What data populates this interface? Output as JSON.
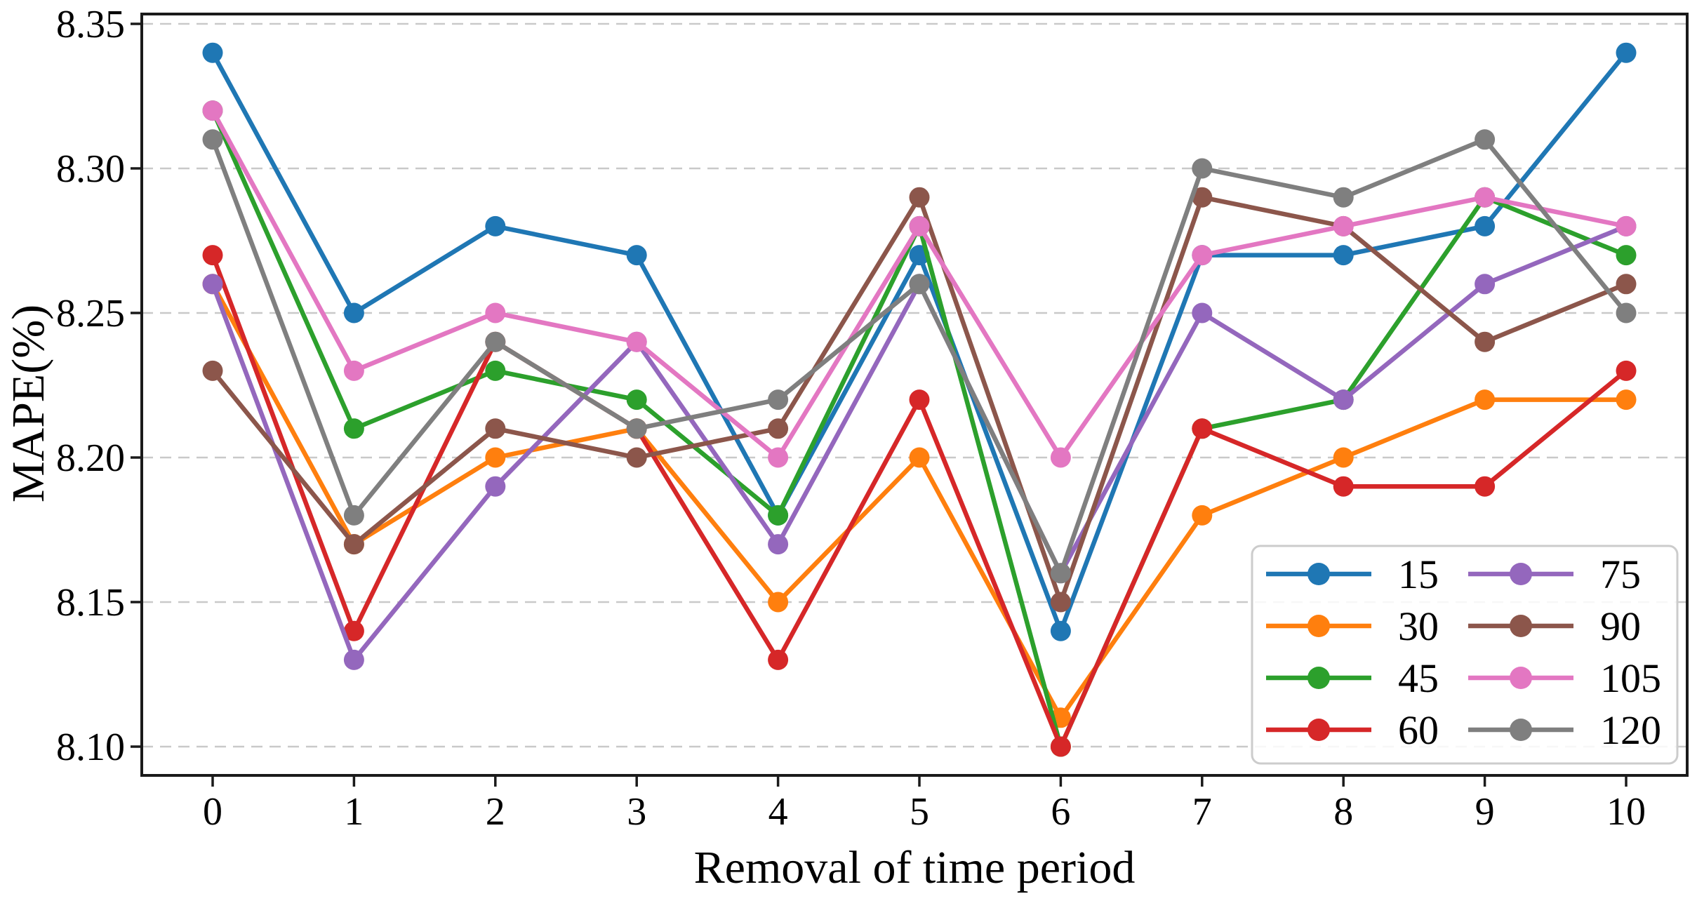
{
  "chart_data": {
    "type": "line",
    "title": "",
    "xlabel": "Removal of time period",
    "ylabel": "MAPE(%)",
    "x": [
      0,
      1,
      2,
      3,
      4,
      5,
      6,
      7,
      8,
      9,
      10
    ],
    "xtick_labels": [
      "0",
      "1",
      "2",
      "3",
      "4",
      "5",
      "6",
      "7",
      "8",
      "9",
      "10"
    ],
    "yticks": [
      8.1,
      8.15,
      8.2,
      8.25,
      8.3,
      8.35
    ],
    "ytick_labels": [
      "8.10",
      "8.15",
      "8.20",
      "8.25",
      "8.30",
      "8.35"
    ],
    "ylim": [
      8.088,
      8.353
    ],
    "xlim": [
      -0.5,
      10.5
    ],
    "grid": "horizontal-dashed",
    "legend_position": "lower-right",
    "legend_columns": 2,
    "series": [
      {
        "name": "15",
        "color": "#1f77b4",
        "values": [
          8.34,
          8.25,
          8.28,
          8.27,
          8.18,
          8.27,
          8.14,
          8.27,
          8.27,
          8.28,
          8.34
        ]
      },
      {
        "name": "30",
        "color": "#ff7f0e",
        "values": [
          8.26,
          8.17,
          8.2,
          8.21,
          8.15,
          8.2,
          8.11,
          8.18,
          8.2,
          8.22,
          8.22
        ]
      },
      {
        "name": "45",
        "color": "#2ca02c",
        "values": [
          8.32,
          8.21,
          8.23,
          8.22,
          8.18,
          8.28,
          8.1,
          8.21,
          8.22,
          8.29,
          8.27
        ]
      },
      {
        "name": "60",
        "color": "#d62728",
        "values": [
          8.27,
          8.14,
          8.24,
          8.21,
          8.13,
          8.22,
          8.1,
          8.21,
          8.19,
          8.19,
          8.23
        ]
      },
      {
        "name": "75",
        "color": "#9467bd",
        "values": [
          8.26,
          8.13,
          8.19,
          8.24,
          8.17,
          8.26,
          8.16,
          8.25,
          8.22,
          8.26,
          8.28
        ]
      },
      {
        "name": "90",
        "color": "#8c564b",
        "values": [
          8.23,
          8.17,
          8.21,
          8.2,
          8.21,
          8.29,
          8.15,
          8.29,
          8.28,
          8.24,
          8.26
        ]
      },
      {
        "name": "105",
        "color": "#e377c2",
        "values": [
          8.32,
          8.23,
          8.25,
          8.24,
          8.2,
          8.28,
          8.2,
          8.27,
          8.28,
          8.29,
          8.28
        ]
      },
      {
        "name": "120",
        "color": "#7f7f7f",
        "values": [
          8.31,
          8.18,
          8.24,
          8.21,
          8.22,
          8.26,
          8.16,
          8.3,
          8.29,
          8.31,
          8.25
        ]
      }
    ],
    "style": {
      "spine_color": "#1a1a1a",
      "grid_color": "#c9c9c9",
      "legend_border_color": "#cccccc",
      "background": "#ffffff"
    }
  }
}
